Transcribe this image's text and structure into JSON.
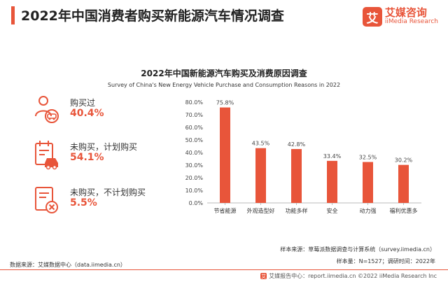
{
  "header": {
    "title": "2022年中国消费者购买新能源汽车情况调查",
    "logo_cn": "艾媒咨询",
    "logo_en": "iiMedia Research",
    "logo_mark": "艾"
  },
  "stats": [
    {
      "label": "购买过",
      "value": "40.4%",
      "icon": "person-car-icon"
    },
    {
      "label": "未购买，计划购买",
      "value": "54.1%",
      "icon": "calendar-car-icon"
    },
    {
      "label": "未购买，不计划购买",
      "value": "5.5%",
      "icon": "document-cancel-icon"
    }
  ],
  "chart_data": {
    "type": "bar",
    "title": "2022年中国新能源汽车购买及消费原因调查",
    "subtitle": "Survey of China's New Energy Vehicle Purchase and Consumption Reasons in 2022",
    "categories": [
      "节省能源",
      "外观造型好",
      "功能多样",
      "安全",
      "动力强",
      "福利优惠多"
    ],
    "values": [
      75.8,
      43.5,
      42.8,
      33.4,
      32.5,
      30.2
    ],
    "value_labels": [
      "75.8%",
      "43.5%",
      "42.8%",
      "33.4%",
      "32.5%",
      "30.2%"
    ],
    "yticks": [
      "0.0%",
      "10.0%",
      "20.0%",
      "30.0%",
      "40.0%",
      "50.0%",
      "60.0%",
      "70.0%",
      "80.0%"
    ],
    "ylim": [
      0,
      80
    ],
    "bar_color": "#e8553a",
    "grid": false
  },
  "footnotes": {
    "sample_source": "样本来源：草莓派数据调查与计算系统（survey.iimedia.cn）",
    "sample_info": "样本量：N=1527；调研时间：2022年",
    "data_source": "数据来源：艾媒数据中心（data.iimedia.cn）"
  },
  "footer": {
    "text": "艾媒报告中心：report.iimedia.cn   ©2022  iiMedia Research  Inc"
  },
  "colors": {
    "accent": "#e8553a"
  }
}
